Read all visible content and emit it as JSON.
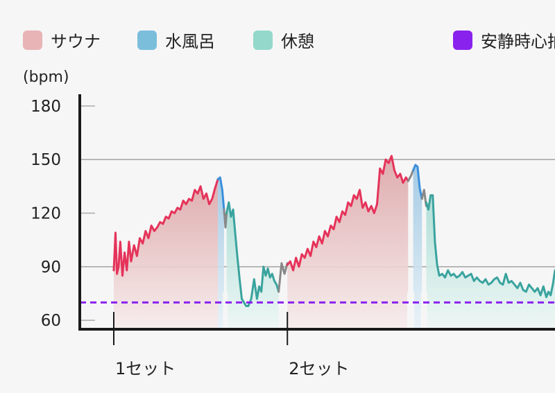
{
  "legend": {
    "items": [
      {
        "label": "サウナ",
        "color": "#e8b4b6"
      },
      {
        "label": "水風呂",
        "color": "#7bbedc"
      },
      {
        "label": "休憩",
        "color": "#94d8cc"
      },
      {
        "label": "安静時心拍",
        "color": "#8a22ee"
      }
    ]
  },
  "chart_data": {
    "type": "line",
    "ylabel": "(bpm)",
    "ylim": [
      55,
      185
    ],
    "yticks": [
      60,
      90,
      120,
      150,
      180
    ],
    "xlim": [
      0,
      30.5
    ],
    "resting_heart_rate": 70,
    "sets": [
      {
        "label": "1セット",
        "x": 0
      },
      {
        "label": "2セット",
        "x": 12
      }
    ],
    "line_colors": {
      "sauna": "#e5335a",
      "cold": "#3a8fdc",
      "rest": "#3aa39e",
      "transition": "#888888"
    },
    "fill_colors": {
      "sauna": [
        "#dca4a6",
        "#f7ecec"
      ],
      "cold": [
        "#9cc6e2",
        "#e8f2f8"
      ],
      "rest": [
        "#a7dcd3",
        "#eef7f5"
      ]
    },
    "series": [
      {
        "phase": "sauna",
        "x": [
          0,
          0.12,
          0.22,
          0.33,
          0.45,
          0.6,
          0.75,
          0.9,
          1.05,
          1.2,
          1.4,
          1.6,
          1.8,
          2.0,
          2.2,
          2.4,
          2.6,
          2.8,
          3.0,
          3.2,
          3.4,
          3.6,
          3.8,
          4.0,
          4.2,
          4.4,
          4.6,
          4.8,
          5.0,
          5.2,
          5.4,
          5.6,
          5.8,
          6.0,
          6.2,
          6.4,
          6.6,
          6.8,
          7.0,
          7.2
        ],
        "y": [
          88,
          109,
          86,
          90,
          104,
          85,
          98,
          88,
          104,
          93,
          102,
          96,
          106,
          103,
          110,
          106,
          113,
          110,
          112,
          115,
          114,
          118,
          117,
          121,
          120,
          123,
          122,
          127,
          125,
          128,
          127,
          133,
          131,
          135,
          128,
          131,
          125,
          128,
          134,
          139
        ]
      },
      {
        "phase": "cold",
        "x": [
          7.2,
          7.35,
          7.5,
          7.62
        ],
        "y": [
          139,
          140,
          133,
          122
        ]
      },
      {
        "phase": "transition",
        "x": [
          7.62,
          7.72,
          7.8
        ],
        "y": [
          122,
          112,
          120
        ]
      },
      {
        "phase": "rest",
        "x": [
          7.8,
          7.95,
          8.1,
          8.25,
          8.4,
          8.55,
          8.7,
          8.85,
          9.0,
          9.15,
          9.3,
          9.5,
          9.7,
          9.9,
          10.05,
          10.2,
          10.35,
          10.5,
          10.65,
          10.8,
          10.95,
          11.1,
          11.25,
          11.4
        ],
        "y": [
          120,
          126,
          118,
          122,
          108,
          95,
          83,
          72,
          70,
          68,
          68,
          72,
          83,
          72,
          79,
          76,
          90,
          85,
          89,
          84,
          86,
          82,
          80,
          76
        ]
      },
      {
        "phase": "transition",
        "x": [
          11.4,
          11.6,
          11.8,
          12.0
        ],
        "y": [
          76,
          92,
          86,
          92
        ]
      },
      {
        "phase": "sauna",
        "x": [
          12.0,
          12.2,
          12.4,
          12.6,
          12.8,
          13.0,
          13.2,
          13.4,
          13.6,
          13.8,
          14.0,
          14.2,
          14.4,
          14.6,
          14.8,
          15.0,
          15.2,
          15.4,
          15.6,
          15.8,
          16.0,
          16.2,
          16.4,
          16.6,
          16.8,
          17.0,
          17.2,
          17.4,
          17.6,
          17.8,
          18.0,
          18.2,
          18.4,
          18.6,
          18.8,
          19.0,
          19.2,
          19.4,
          19.6,
          19.8,
          20.0,
          20.2,
          20.35
        ],
        "y": [
          91,
          93,
          88,
          95,
          90,
          97,
          95,
          100,
          96,
          104,
          101,
          107,
          103,
          110,
          107,
          113,
          111,
          118,
          115,
          121,
          119,
          126,
          124,
          130,
          128,
          133,
          123,
          126,
          121,
          124,
          120,
          125,
          145,
          142,
          150,
          148,
          152,
          144,
          140,
          142,
          137,
          140,
          138
        ]
      },
      {
        "phase": "transition",
        "x": [
          20.35,
          20.55,
          20.7
        ],
        "y": [
          138,
          141,
          144
        ]
      },
      {
        "phase": "cold",
        "x": [
          20.7,
          20.85,
          21.0,
          21.15,
          21.3
        ],
        "y": [
          144,
          147,
          146,
          134,
          128
        ]
      },
      {
        "phase": "transition",
        "x": [
          21.3,
          21.45,
          21.6
        ],
        "y": [
          128,
          133,
          124
        ]
      },
      {
        "phase": "rest",
        "x": [
          21.6,
          21.75,
          21.9,
          22.05,
          22.2,
          22.35,
          22.5,
          22.7,
          22.9,
          23.1,
          23.3,
          23.5,
          23.7,
          23.9,
          24.1,
          24.3,
          24.5,
          24.7,
          24.9,
          25.1,
          25.3,
          25.5,
          25.7,
          25.9,
          26.1,
          26.3,
          26.5,
          26.7,
          26.9,
          27.1,
          27.3,
          27.5,
          27.7,
          27.9,
          28.1,
          28.3,
          28.5,
          28.7,
          28.9,
          29.1,
          29.3,
          29.5,
          29.7,
          29.9,
          30.05,
          30.2,
          30.35,
          30.5
        ],
        "y": [
          126,
          122,
          130,
          130,
          104,
          91,
          85,
          86,
          84,
          88,
          85,
          86,
          84,
          85,
          87,
          84,
          85,
          86,
          82,
          84,
          82,
          81,
          83,
          80,
          81,
          83,
          84,
          81,
          80,
          86,
          81,
          82,
          80,
          78,
          81,
          77,
          76,
          80,
          78,
          76,
          78,
          74,
          79,
          73,
          76,
          74,
          80,
          88
        ]
      }
    ]
  }
}
